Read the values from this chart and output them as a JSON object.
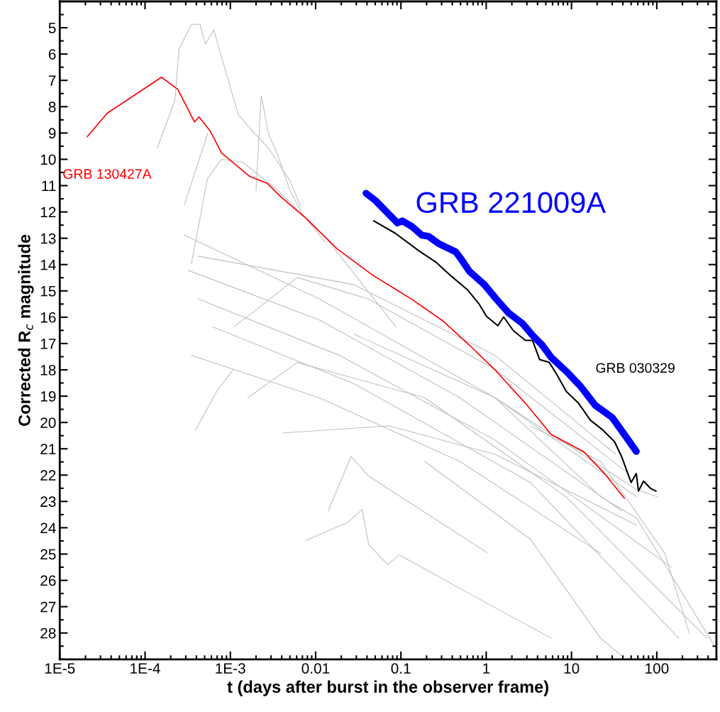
{
  "chart_data": {
    "type": "line",
    "xlabel": "t (days after burst in the observer frame)",
    "ylabel": "Corrected R$_{c}$ magnitude",
    "log": "x",
    "xlim": [
      1e-05,
      500
    ],
    "ylim": [
      29,
      4
    ],
    "xticks": [
      {
        "value": 1e-05,
        "label": "1E-5"
      },
      {
        "value": 0.0001,
        "label": "1E-4"
      },
      {
        "value": 0.001,
        "label": "1E-3"
      },
      0.01,
      0.1,
      1,
      10,
      100
    ],
    "yticks": [
      5,
      6,
      7,
      8,
      9,
      10,
      11,
      12,
      13,
      14,
      15,
      16,
      17,
      18,
      19,
      20,
      21,
      22,
      23,
      24,
      25,
      26,
      27,
      28
    ],
    "line_style": "solid",
    "series": [
      {
        "color": "#c0c0c0",
        "x": [
          0.000139,
          0.000224,
          0.00025,
          0.00035,
          0.00044,
          0.00051,
          0.00064,
          0.00103,
          0.00125,
          0.00194,
          0.0028,
          0.005,
          0.0067
        ],
        "values": [
          9.57,
          7.77,
          5.81,
          4.87,
          4.87,
          5.62,
          5.08,
          7.42,
          8.31,
          9.03,
          9.57,
          10.81,
          11.8
        ]
      },
      {
        "color": "#c0c0c0",
        "x": [
          0.002,
          0.0023,
          0.0028,
          0.0036,
          0.005,
          0.007,
          0.013
        ],
        "values": [
          11.18,
          7.58,
          9.03,
          9.84,
          11.18,
          12.07,
          13.15
        ]
      },
      {
        "color": "#c0c0c0",
        "x": [
          0.00029,
          0.00054
        ],
        "values": [
          11.72,
          9.03
        ]
      },
      {
        "color": "#c0c0c0",
        "x": [
          0.00035,
          0.00054,
          0.00079,
          0.0014,
          0.0036,
          0.013,
          0.088
        ],
        "values": [
          13.95,
          10.73,
          10.0,
          10.11,
          11.18,
          12.96,
          16.37
        ]
      },
      {
        "color": "#c0c0c0",
        "x": [
          0.00029,
          0.011,
          1.27,
          58
        ],
        "values": [
          12.88,
          15.3,
          19.06,
          22.82
        ]
      },
      {
        "color": "#c0c0c0",
        "x": [
          0.00032,
          0.011,
          0.49,
          39
        ],
        "values": [
          14.22,
          16.1,
          19.06,
          23.36
        ]
      },
      {
        "color": "#c0c0c0",
        "x": [
          0.00042,
          0.019,
          1.27,
          150
        ],
        "values": [
          15.3,
          17.45,
          20.67,
          25.51
        ]
      },
      {
        "color": "#c0c0c0",
        "x": [
          0.00062,
          0.028,
          3.3,
          181
        ],
        "values": [
          16.37,
          18.52,
          22.28,
          28.2
        ]
      },
      {
        "color": "#c0c0c0",
        "x": [
          0.00035,
          0.011,
          0.49,
          22
        ],
        "values": [
          17.45,
          19.06,
          21.48,
          24.97
        ]
      },
      {
        "color": "#c0c0c0",
        "x": [
          0.0011,
          0.0061,
          0.041,
          1.27,
          45
        ],
        "values": [
          16.37,
          14.49,
          15.3,
          17.98,
          21.9
        ]
      },
      {
        "color": "#c0c0c0",
        "x": [
          0.0016,
          0.0061,
          0.19,
          8.6,
          388
        ],
        "values": [
          19.06,
          17.72,
          19.06,
          22.82,
          28.2
        ]
      },
      {
        "color": "#c0c0c0",
        "x": [
          0.0041,
          0.073,
          1.27,
          58
        ],
        "values": [
          20.4,
          20.13,
          21.21,
          23.9
        ]
      },
      {
        "color": "#c0c0c0",
        "x": [
          0.0076,
          0.024,
          0.035,
          0.042,
          0.07,
          0.095,
          1.27,
          5.8
        ],
        "values": [
          24.49,
          23.79,
          23.31,
          24.65,
          25.4,
          25.03,
          27.04,
          28.2
        ]
      },
      {
        "color": "#c0c0c0",
        "x": [
          0.014,
          0.026,
          0.042,
          1.03
        ],
        "values": [
          23.36,
          21.29,
          22.04,
          24.95
        ]
      },
      {
        "color": "#c0c0c0",
        "x": [
          0.00039,
          0.0007,
          0.00107
        ],
        "values": [
          20.3,
          18.79,
          18.01
        ]
      },
      {
        "color": "#c0c0c0",
        "x": [
          1.27,
          22,
          58,
          470
        ],
        "values": [
          19.06,
          22.82,
          23.63,
          28.47
        ]
      },
      {
        "color": "#c0c0c0",
        "x": [
          3.3,
          22,
          124,
          241
        ],
        "values": [
          20.13,
          21.48,
          24.97,
          28.01
        ]
      },
      {
        "color": "#c0c0c0",
        "x": [
          0.19,
          3.3,
          22,
          39
        ],
        "values": [
          21.48,
          24.44,
          28.2,
          28.87
        ]
      },
      {
        "color": "#c0c0c0",
        "x": [
          0.028,
          1.27,
          58,
          102
        ],
        "values": [
          16.64,
          19.06,
          22.55,
          22.82
        ]
      },
      {
        "color": "#c0c0c0",
        "x": [
          0.00042,
          0.028,
          1.27,
          33
        ],
        "values": [
          13.68,
          14.76,
          17.45,
          21.21
        ]
      },
      {
        "name": "GRB 130427A",
        "color": "#ff0000",
        "x": [
          2.1e-05,
          3.6e-05,
          0.000156,
          0.000242,
          0.00038,
          0.00043,
          0.00058,
          0.00079,
          0.00169,
          0.0027,
          0.0039,
          0.0078,
          0.018,
          0.047,
          0.088,
          0.134,
          0.316,
          0.64,
          1.32,
          2.88,
          5.8,
          13.8,
          24.4,
          41.7
        ],
        "values": [
          9.14,
          8.25,
          6.88,
          7.34,
          8.58,
          8.39,
          8.92,
          9.76,
          10.65,
          10.91,
          11.42,
          12.26,
          13.41,
          14.41,
          14.95,
          15.32,
          16.16,
          17.07,
          18.06,
          19.27,
          20.46,
          21.1,
          21.94,
          22.88
        ]
      },
      {
        "name": "GRB 030329",
        "color": "#000000",
        "x": [
          0.048,
          0.085,
          0.165,
          0.256,
          0.38,
          0.6,
          0.83,
          1.01,
          1.37,
          1.6,
          2.08,
          2.88,
          3.49,
          4.23,
          5.5,
          6.7,
          8.7,
          12.1,
          16.7,
          23,
          32,
          38.6,
          50,
          57.5,
          61,
          70,
          84,
          98
        ],
        "values": [
          12.34,
          12.8,
          13.49,
          13.9,
          14.41,
          14.95,
          15.51,
          15.97,
          16.32,
          15.99,
          16.51,
          16.88,
          16.88,
          17.61,
          17.72,
          18.17,
          18.82,
          19.27,
          19.92,
          20.27,
          20.73,
          21.29,
          22.28,
          21.94,
          22.61,
          22.23,
          22.5,
          22.61
        ]
      },
      {
        "name": "GRB 221009A",
        "color": "#0000ff",
        "x": [
          0.039,
          0.05,
          0.091,
          0.104,
          0.134,
          0.175,
          0.211,
          0.276,
          0.44,
          0.5,
          0.64,
          0.95,
          1.32,
          1.82,
          2.67,
          3.49,
          4.56,
          5.8,
          8.7,
          12.8,
          19.0,
          30,
          41.7,
          57.5
        ],
        "values": [
          11.29,
          11.56,
          12.42,
          12.34,
          12.55,
          12.88,
          12.93,
          13.2,
          13.52,
          13.76,
          14.27,
          14.76,
          15.32,
          15.83,
          16.24,
          16.69,
          17.07,
          17.53,
          18.06,
          18.63,
          19.35,
          19.81,
          20.46,
          21.1
        ]
      }
    ]
  }
}
